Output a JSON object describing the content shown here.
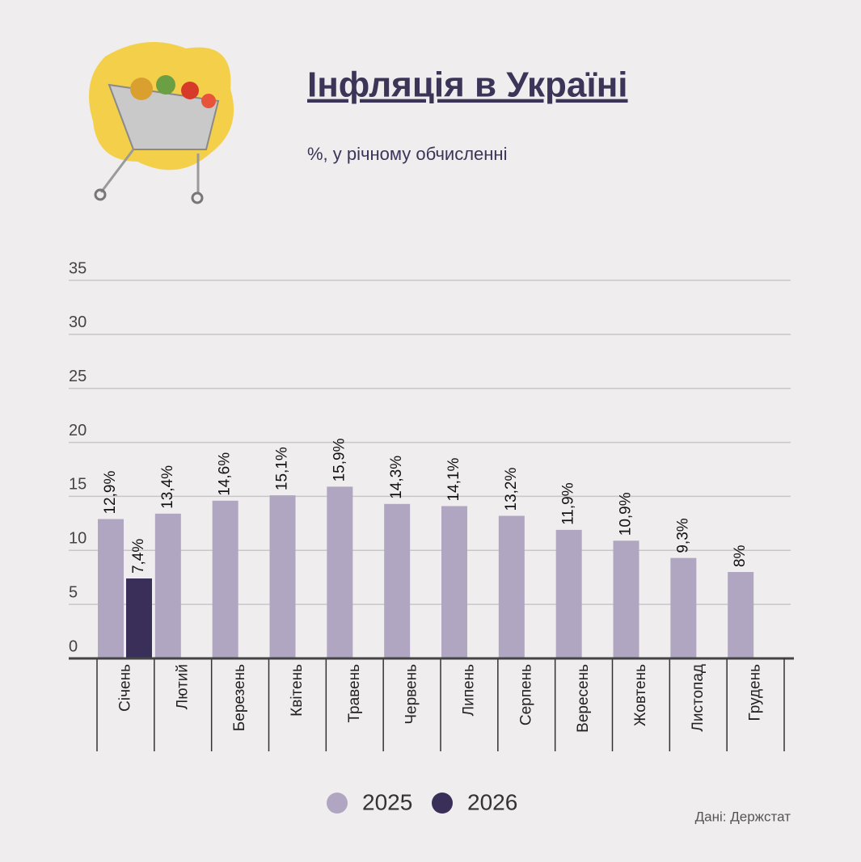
{
  "chart_data": {
    "type": "bar",
    "title": "Інфляція в Україні",
    "subtitle": "%, у річному обчисленні",
    "categories": [
      "Січень",
      "Лютий",
      "Березень",
      "Квітень",
      "Травень",
      "Червень",
      "Липень",
      "Серпень",
      "Вересень",
      "Жовтень",
      "Листопад",
      "Грудень"
    ],
    "series": [
      {
        "name": "2025",
        "color": "#b1a6c1",
        "values": [
          12.9,
          13.4,
          14.6,
          15.1,
          15.9,
          14.3,
          14.1,
          13.2,
          11.9,
          10.9,
          9.3,
          8
        ],
        "value_labels": [
          "12,9%",
          "13,4%",
          "14,6%",
          "15,1%",
          "15,9%",
          "14,3%",
          "14,1%",
          "13,2%",
          "11,9%",
          "10,9%",
          "9,3%",
          "8%"
        ]
      },
      {
        "name": "2026",
        "color": "#3a2f58",
        "values": [
          7.4,
          null,
          null,
          null,
          null,
          null,
          null,
          null,
          null,
          null,
          null,
          null
        ],
        "value_labels": [
          "7,4%",
          null,
          null,
          null,
          null,
          null,
          null,
          null,
          null,
          null,
          null,
          null
        ]
      }
    ],
    "ylim": [
      0,
      35
    ],
    "yticks": [
      0,
      5,
      10,
      15,
      20,
      25,
      30,
      35
    ],
    "grid": true,
    "source": "Дані: Держстат"
  }
}
